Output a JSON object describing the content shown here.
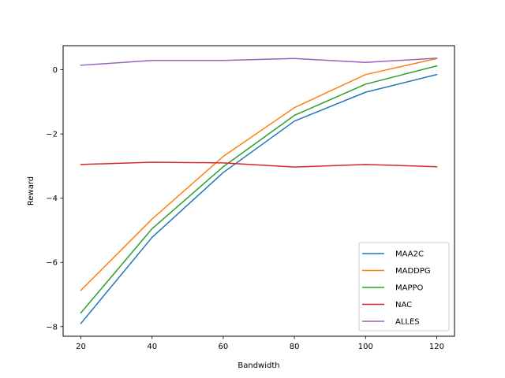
{
  "chart_data": {
    "type": "line",
    "title": "",
    "xlabel": "Bandwidth",
    "ylabel": "Reward",
    "x": [
      20,
      40,
      60,
      80,
      100,
      120
    ],
    "xlim": [
      15,
      125
    ],
    "ylim": [
      -8.3,
      0.75
    ],
    "xticks": [
      20,
      40,
      60,
      80,
      100,
      120
    ],
    "yticks": [
      0,
      -2,
      -4,
      -6,
      -8
    ],
    "ytick_labels": [
      "0",
      "−2",
      "−4",
      "−6",
      "−8"
    ],
    "grid": false,
    "legend_position": "lower right",
    "series": [
      {
        "name": "MAA2C",
        "color": "#1f77b4",
        "values": [
          -7.9,
          -5.22,
          -3.2,
          -1.6,
          -0.7,
          -0.15
        ]
      },
      {
        "name": "MADDPG",
        "color": "#ff7f0e",
        "values": [
          -6.87,
          -4.65,
          -2.7,
          -1.18,
          -0.15,
          0.35
        ]
      },
      {
        "name": "MAPPO",
        "color": "#2ca02c",
        "values": [
          -7.57,
          -4.95,
          -3.02,
          -1.42,
          -0.45,
          0.12
        ]
      },
      {
        "name": "NAC",
        "color": "#d62728",
        "values": [
          -2.95,
          -2.88,
          -2.9,
          -3.03,
          -2.95,
          -3.02
        ]
      },
      {
        "name": "ALLES",
        "color": "#9467bd",
        "values": [
          0.14,
          0.29,
          0.29,
          0.35,
          0.23,
          0.36
        ]
      }
    ]
  }
}
